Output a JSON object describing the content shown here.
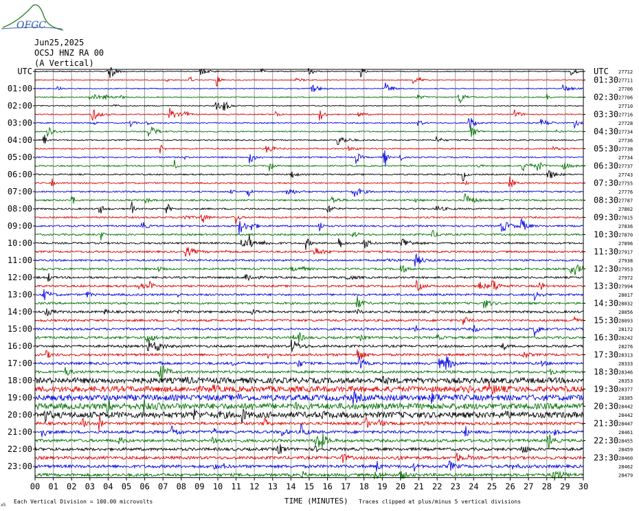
{
  "header": {
    "logo_text": "OFGC",
    "date": "Jun25,2025",
    "station": "OCSJ HNZ RA 00",
    "component": "(A Vertical)"
  },
  "chart_data": {
    "type": "line",
    "title": "Jun25,2025 OCSJ HNZ RA 00 (A Vertical)",
    "xlabel": "TIME (MINUTES)",
    "left_axis_title": "UTC",
    "right_axis_title": "UTC",
    "x_ticks": [
      "00",
      "01",
      "02",
      "03",
      "04",
      "05",
      "06",
      "07",
      "08",
      "09",
      "10",
      "11",
      "12",
      "13",
      "14",
      "15",
      "16",
      "17",
      "18",
      "19",
      "20",
      "21",
      "22",
      "23",
      "24",
      "25",
      "26",
      "27",
      "28",
      "29",
      "30"
    ],
    "xlim": [
      0,
      30
    ],
    "left_labels": [
      "UTC",
      "01:00",
      "02:00",
      "03:00",
      "04:00",
      "05:00",
      "06:00",
      "07:00",
      "08:00",
      "09:00",
      "10:00",
      "11:00",
      "12:00",
      "13:00",
      "14:00",
      "15:00",
      "16:00",
      "17:00",
      "18:00",
      "19:00",
      "20:00",
      "21:00",
      "22:00",
      "23:00"
    ],
    "right_labels": [
      "UTC",
      "01:30",
      "02:30",
      "03:30",
      "04:30",
      "05:30",
      "06:30",
      "07:30",
      "08:30",
      "09:30",
      "10:30",
      "11:30",
      "12:30",
      "13:30",
      "14:30",
      "15:30",
      "16:30",
      "17:30",
      "18:30",
      "19:30",
      "20:30",
      "21:30",
      "22:30",
      "23:30"
    ],
    "trace_values": [
      "27712",
      "27711",
      "27706",
      "27706",
      "27710",
      "27716",
      "27728",
      "27734",
      "27736",
      "27738",
      "27734",
      "27737",
      "27743",
      "27755",
      "27776",
      "27787",
      "27802",
      "27815",
      "27836",
      "27870",
      "27896",
      "27917",
      "27938",
      "27953",
      "27972",
      "27994",
      "28017",
      "28032",
      "28056",
      "28093",
      "28172",
      "28242",
      "28276",
      "28313",
      "28333",
      "28346",
      "28353",
      "28377",
      "28385",
      "28442",
      "28442",
      "28447",
      "28461",
      "28455",
      "28459",
      "28460",
      "28462",
      "28479"
    ],
    "trace_colors": [
      "#000000",
      "#e00000",
      "#0000e0",
      "#007000"
    ],
    "grid": true,
    "footer_left": "Each Vertical Division =  100.00 microvolts",
    "footer_right": "Traces clipped at plus/minus 5 vertical divisions",
    "corner_mark": "x5"
  }
}
